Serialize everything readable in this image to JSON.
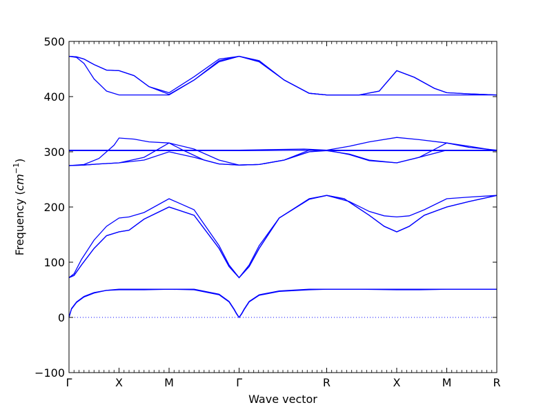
{
  "chart_data": {
    "type": "line",
    "xlabel": "Wave vector",
    "ylabel_main": "Frequency (",
    "ylabel_unit": "cm",
    "ylabel_exp": "−1",
    "ylabel_close": ")",
    "ylim": [
      -100,
      500
    ],
    "yticks": [
      -100,
      0,
      100,
      200,
      300,
      400,
      500
    ],
    "ytick_labels": [
      "−100",
      "0",
      "100",
      "200",
      "300",
      "400",
      "500"
    ],
    "x_points": [
      0,
      1,
      2,
      3.4,
      5.15,
      6.55,
      7.55,
      8.55
    ],
    "xlim": [
      0,
      8.55
    ],
    "x_labels": [
      "Γ",
      "X",
      "M",
      "Γ",
      "R",
      "X",
      "M",
      "R"
    ],
    "zero_line": true,
    "grid": false,
    "line_color": "#0000ff",
    "zero_line_color": "#0000ff",
    "series": [
      {
        "x": [
          0,
          0.05,
          0.15,
          0.3,
          0.5,
          0.75,
          1,
          1.5,
          2,
          2.5,
          3,
          3.2,
          3.3,
          3.35,
          3.4,
          3.45,
          3.5,
          3.6,
          3.8,
          4.2,
          4.8,
          5.15,
          5.8,
          6.55,
          7,
          7.55,
          8,
          8.55
        ],
        "y": [
          0,
          15,
          27,
          37,
          44,
          49,
          50,
          50,
          51,
          50,
          41,
          28,
          14,
          6,
          0,
          6,
          14,
          28,
          40,
          47,
          50,
          51,
          51,
          50,
          50,
          51,
          51,
          51
        ]
      },
      {
        "x": [
          0,
          0.05,
          0.15,
          0.3,
          0.5,
          0.75,
          1,
          1.5,
          2,
          2.5,
          3,
          3.2,
          3.3,
          3.35,
          3.4,
          3.45,
          3.5,
          3.6,
          3.8,
          4.2,
          4.8,
          5.15,
          5.8,
          6.55,
          7,
          7.55,
          8,
          8.55
        ],
        "y": [
          0,
          16,
          28,
          38,
          45,
          49,
          51,
          51,
          51,
          51,
          42,
          29,
          15,
          7,
          0,
          7,
          15,
          29,
          41,
          48,
          51,
          51,
          51,
          51,
          51,
          51,
          51,
          51
        ]
      },
      {
        "x": [
          0,
          0.1,
          0.25,
          0.5,
          0.75,
          1,
          1.2,
          1.5,
          2,
          2.5,
          3,
          3.2,
          3.4,
          3.6,
          3.8,
          4.2,
          4.8,
          5.15,
          5.6,
          6,
          6.3,
          6.55,
          6.8,
          7.1,
          7.55,
          8,
          8.55
        ],
        "y": [
          72,
          79,
          105,
          140,
          165,
          180,
          182,
          190,
          215,
          195,
          130,
          95,
          72,
          95,
          130,
          180,
          215,
          221,
          210,
          192,
          184,
          182,
          184,
          195,
          215,
          218,
          221
        ]
      },
      {
        "x": [
          0,
          0.1,
          0.25,
          0.5,
          0.75,
          1,
          1.2,
          1.5,
          2,
          2.5,
          3,
          3.2,
          3.4,
          3.6,
          3.8,
          4.2,
          4.8,
          5.15,
          5.5,
          6,
          6.3,
          6.55,
          6.8,
          7.1,
          7.55,
          8,
          8.55
        ],
        "y": [
          72,
          76,
          95,
          125,
          148,
          155,
          158,
          178,
          200,
          185,
          125,
          92,
          72,
          92,
          125,
          180,
          214,
          221,
          215,
          185,
          165,
          155,
          165,
          185,
          200,
          210,
          221
        ]
      },
      {
        "x": [
          0,
          0.1,
          0.25,
          0.5,
          0.75,
          1,
          1.2,
          1.5,
          2,
          2.5,
          3,
          3.2,
          3.4,
          3.6,
          3.8,
          4.2,
          4.8,
          5.15,
          5.5,
          6,
          6.3,
          6.55,
          6.8,
          7.1,
          7.55,
          8,
          8.55
        ],
        "y": [
          72,
          76,
          95,
          125,
          148,
          155,
          158,
          178,
          200,
          185,
          125,
          92,
          72,
          92,
          125,
          180,
          214,
          221,
          215,
          185,
          165,
          155,
          165,
          185,
          200,
          210,
          221
        ]
      },
      {
        "x": [
          0,
          0.3,
          0.6,
          1,
          1.5,
          2,
          2.5,
          3,
          3.4,
          3.8,
          4.3,
          4.8,
          5.15,
          5.6,
          6,
          6.55,
          7,
          7.55,
          8,
          8.55
        ],
        "y": [
          275,
          276,
          278,
          280,
          285,
          300,
          290,
          278,
          276,
          277,
          285,
          300,
          303,
          310,
          318,
          326,
          322,
          316,
          308,
          303
        ]
      },
      {
        "x": [
          0,
          0.3,
          0.6,
          1,
          1.5,
          2,
          2.5,
          3,
          3.4,
          3.8,
          4.3,
          4.8,
          5.15,
          5.6,
          6,
          6.55,
          7,
          7.55,
          8,
          8.55
        ],
        "y": [
          275,
          276,
          278,
          280,
          290,
          316,
          305,
          285,
          276,
          277,
          285,
          303,
          303,
          295,
          284,
          280,
          290,
          303,
          302,
          302
        ]
      },
      {
        "x": [
          0,
          0.3,
          0.6,
          0.9,
          1,
          1.3,
          1.6,
          2,
          2.3,
          2.7,
          3,
          3.4,
          3.8,
          4.3,
          4.8,
          5.15,
          5.6,
          6,
          6.55,
          7,
          7.55,
          8,
          8.55
        ],
        "y": [
          275,
          277,
          288,
          312,
          325,
          323,
          318,
          316,
          302,
          285,
          278,
          276,
          277,
          285,
          300,
          302,
          296,
          285,
          280,
          290,
          316,
          310,
          302
        ]
      },
      {
        "x": [
          0,
          1,
          2,
          3.4,
          4.7,
          5.15,
          6.55,
          7.55,
          8.55
        ],
        "y": [
          303,
          303,
          303,
          303,
          305,
          303,
          303,
          303,
          303
        ]
      },
      {
        "x": [
          0,
          1,
          2,
          3.4,
          4.7,
          5.15,
          6.55,
          7.55,
          8.55
        ],
        "y": [
          302,
          302,
          302,
          302,
          303,
          302,
          302,
          302,
          302
        ]
      },
      {
        "x": [
          0,
          0.15,
          0.3,
          0.5,
          0.75,
          1,
          1.3,
          1.6,
          2,
          2.5,
          3,
          3.4,
          3.8,
          4.3,
          4.8,
          5.15,
          5.8,
          6.2,
          6.55,
          6.9,
          7.3,
          7.55,
          8,
          8.55
        ],
        "y": [
          473,
          472,
          468,
          458,
          448,
          447,
          438,
          418,
          404,
          430,
          465,
          473,
          465,
          430,
          406,
          403,
          403,
          410,
          447,
          435,
          415,
          407,
          405,
          403
        ]
      },
      {
        "x": [
          0,
          0.15,
          0.3,
          0.5,
          0.75,
          1,
          1.3,
          1.6,
          2,
          2.5,
          3,
          3.4,
          3.8,
          4.3,
          4.8,
          5.15,
          5.8,
          6.2,
          6.55,
          6.9,
          7.3,
          7.55,
          8,
          8.55
        ],
        "y": [
          473,
          472,
          468,
          458,
          448,
          447,
          438,
          418,
          407,
          436,
          468,
          473,
          465,
          430,
          406,
          403,
          403,
          410,
          447,
          435,
          415,
          407,
          405,
          403
        ]
      },
      {
        "x": [
          0,
          0.15,
          0.3,
          0.5,
          0.75,
          1,
          1.5,
          2,
          2.5,
          3,
          3.4,
          3.8,
          4.3,
          4.8,
          5.15,
          6.55,
          7.55,
          8.55
        ],
        "y": [
          473,
          471,
          460,
          432,
          410,
          403,
          403,
          403,
          430,
          463,
          473,
          463,
          430,
          406,
          403,
          403,
          403,
          403
        ]
      }
    ]
  }
}
